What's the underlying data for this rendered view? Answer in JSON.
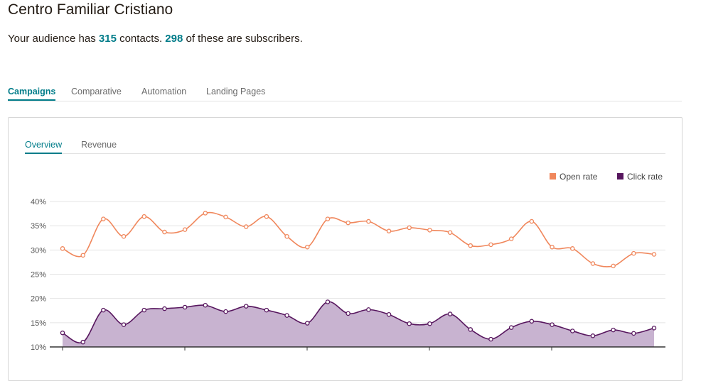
{
  "header": {
    "title": "Centro Familiar Cristiano",
    "summary_prefix": "Your audience has ",
    "contacts": "315",
    "summary_mid": " contacts. ",
    "subscribers": "298",
    "summary_suffix": " of these are subscribers."
  },
  "tabs": [
    "Campaigns",
    "Comparative",
    "Automation",
    "Landing Pages"
  ],
  "subtabs": [
    "Overview",
    "Revenue"
  ],
  "colors": {
    "accent": "#007c89",
    "open": "#f0875c",
    "click": "#57165e",
    "click_fill": "#c8b3d0"
  },
  "chart_data": {
    "type": "line",
    "y_ticks": [
      "40%",
      "35%",
      "30%",
      "25%",
      "20%",
      "15%",
      "10%"
    ],
    "ylim": [
      10,
      40
    ],
    "grid": true,
    "legend_position": "top-right",
    "series": [
      {
        "name": "Open rate",
        "values": [
          30.3,
          28.9,
          36.4,
          32.8,
          36.9,
          33.7,
          34.2,
          37.6,
          36.8,
          34.8,
          36.9,
          32.8,
          30.6,
          36.4,
          35.6,
          35.9,
          33.9,
          34.6,
          34.1,
          33.6,
          30.9,
          31.1,
          32.3,
          35.9,
          30.6,
          30.3,
          27.2,
          26.7,
          29.3,
          29.1
        ]
      },
      {
        "name": "Click rate",
        "values": [
          12.9,
          11.0,
          17.6,
          14.6,
          17.6,
          17.9,
          18.2,
          18.6,
          17.3,
          18.4,
          17.6,
          16.5,
          14.9,
          19.3,
          16.9,
          17.7,
          16.7,
          14.8,
          14.8,
          16.8,
          13.6,
          11.6,
          14.0,
          15.3,
          14.6,
          13.3,
          12.3,
          13.5,
          12.8,
          13.9
        ]
      }
    ]
  }
}
